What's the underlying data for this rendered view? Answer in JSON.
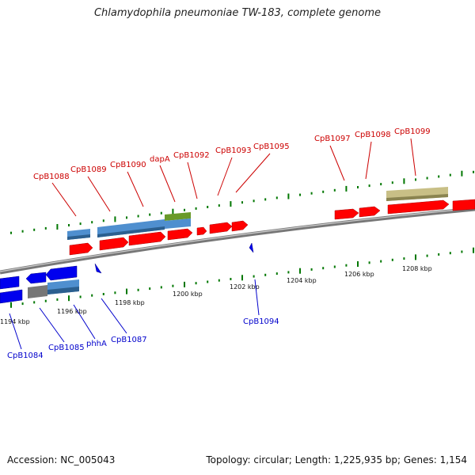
{
  "title": "Chlamydophila pneumoniae TW-183, complete genome",
  "footer": {
    "accession": "Accession: NC_005043",
    "summary": "Topology: circular; Length: 1,225,935 bp; Genes: 1,154"
  },
  "colors": {
    "forward_gene": "#ff0000",
    "reverse_gene": "#0000ee",
    "forward_label": "#cc0000",
    "reverse_label": "#0000cc",
    "tick": "#007700",
    "backbone": "#888888",
    "feature_blue": "#4f8fcf",
    "feature_olive": "#6a9a2a",
    "feature_khaki": "#c8bf86",
    "feature_gray": "#777777"
  },
  "scale_labels": [
    "1194 kbp",
    "1196 kbp",
    "1198 kbp",
    "1200 kbp",
    "1202 kbp",
    "1204 kbp",
    "1206 kbp",
    "1208 kbp"
  ],
  "forward_labels": [
    "CpB1088",
    "CpB1089",
    "CpB1090",
    "dapA",
    "CpB1092",
    "CpB1093",
    "CpB1095",
    "CpB1097",
    "CpB1098",
    "CpB1099"
  ],
  "reverse_labels": [
    "CpB1084",
    "CpB1085",
    "phhA",
    "CpB1087",
    "CpB1094"
  ]
}
